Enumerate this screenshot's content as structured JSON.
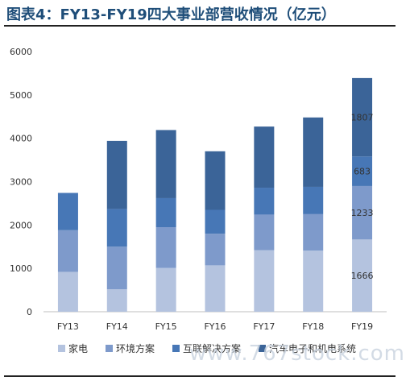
{
  "header": {
    "title": "图表4：FY13-FY19四大事业部营收情况（亿元）"
  },
  "watermark": "www.767stock.com",
  "chart_data": {
    "type": "bar",
    "stacked": true,
    "categories": [
      "FY13",
      "FY14",
      "FY15",
      "FY16",
      "FY17",
      "FY18",
      "FY19"
    ],
    "ylim": [
      0,
      6000
    ],
    "yticks": [
      0,
      1000,
      2000,
      3000,
      4000,
      5000,
      6000
    ],
    "legend_position": "bottom",
    "series": [
      {
        "name": "家电",
        "color": "#b4c3df",
        "values": [
          920,
          520,
          1010,
          1070,
          1420,
          1410,
          1666
        ]
      },
      {
        "name": "环境方案",
        "color": "#7e9acb",
        "values": [
          960,
          980,
          940,
          730,
          820,
          840,
          1233
        ]
      },
      {
        "name": "互联解决方案",
        "color": "#4777b6",
        "values": [
          860,
          870,
          670,
          550,
          620,
          630,
          683
        ]
      },
      {
        "name": "汽车电子和机电系统",
        "color": "#3b6498",
        "values": [
          0,
          1570,
          1570,
          1350,
          1410,
          1600,
          1807
        ]
      }
    ],
    "data_labels": [
      {
        "series": 0,
        "index": 6,
        "text": "1666"
      },
      {
        "series": 1,
        "index": 6,
        "text": "1233"
      },
      {
        "series": 2,
        "index": 6,
        "text": "683"
      },
      {
        "series": 3,
        "index": 6,
        "text": "1807"
      }
    ]
  }
}
